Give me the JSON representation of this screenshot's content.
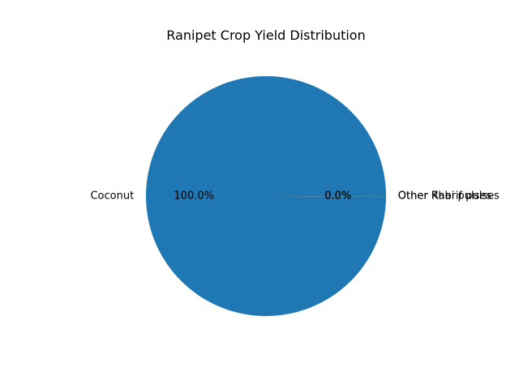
{
  "chart_data": {
    "type": "pie",
    "title": "Ranipet Crop Yield Distribution",
    "slices": [
      {
        "label": "Coconut",
        "value": 99.98,
        "pct_label": "100.0%",
        "color": "#1f77b4"
      },
      {
        "label": "Other Rabi pulses",
        "value": 0.01,
        "pct_label": "0.0%",
        "color": "#ff7f0e"
      },
      {
        "label": "Other Kharif pulses",
        "value": 0.01,
        "pct_label": "0.0%",
        "color": "#2ca02c"
      }
    ],
    "start_angle_deg": 0,
    "direction": "counterclockwise"
  }
}
